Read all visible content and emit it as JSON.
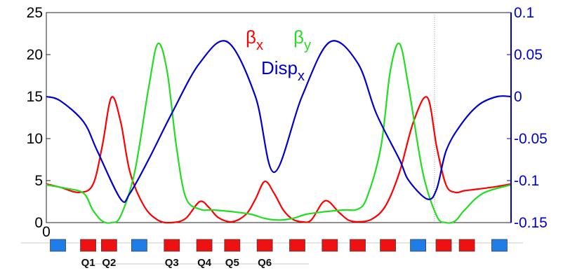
{
  "chart_data": {
    "type": "line",
    "title": "",
    "xlabel": "",
    "ylabel": "",
    "x_origin_label": "0",
    "xlim": [
      0,
      100
    ],
    "ylim_left": [
      0,
      25
    ],
    "ylim_right": [
      -0.15,
      0.1
    ],
    "yticks_left": [
      {
        "value": 0,
        "label": "0"
      },
      {
        "value": 5,
        "label": "5"
      },
      {
        "value": 10,
        "label": "10"
      },
      {
        "value": 15,
        "label": "15"
      },
      {
        "value": 20,
        "label": "20"
      },
      {
        "value": 25,
        "label": "25"
      }
    ],
    "yticks_right": [
      {
        "value": -0.15,
        "label": "-0.15"
      },
      {
        "value": -0.1,
        "label": "-0.1"
      },
      {
        "value": -0.05,
        "label": "-0.05"
      },
      {
        "value": 0,
        "label": "0"
      },
      {
        "value": 0.05,
        "label": "0.05"
      },
      {
        "value": 0.1,
        "label": "0.1"
      }
    ],
    "legend": [
      {
        "symbol": "β",
        "sub": "x",
        "color": "#ff0000"
      },
      {
        "symbol": "β",
        "sub": "y",
        "color": "#22dd22"
      },
      {
        "symbol": "Disp",
        "sub": "x",
        "color": "#0000cc"
      }
    ],
    "series": [
      {
        "color": "#ff0000",
        "axis": "left",
        "x": [
          0,
          3,
          7,
          10,
          12,
          14,
          16,
          18,
          21,
          24,
          27,
          30,
          33,
          35,
          37,
          40,
          43,
          45,
          47,
          49,
          51,
          53,
          55,
          57,
          60,
          63,
          65,
          67,
          70,
          73,
          76,
          79,
          82,
          84,
          86,
          88,
          90,
          93,
          97,
          100
        ],
        "y": [
          4.6,
          4.2,
          3.6,
          4.5,
          9.0,
          14.9,
          12.0,
          6.0,
          2.0,
          0.3,
          0.0,
          0.5,
          2.5,
          1.8,
          0.6,
          0.1,
          1.0,
          2.8,
          4.9,
          3.5,
          1.5,
          0.4,
          0.1,
          0.3,
          2.6,
          1.2,
          0.3,
          0.1,
          0.4,
          2.0,
          6.0,
          12.0,
          14.9,
          9.0,
          4.5,
          3.6,
          3.8,
          4.0,
          4.3,
          4.6
        ]
      },
      {
        "color": "#22dd22",
        "axis": "left",
        "x": [
          0,
          4,
          8,
          10,
          12,
          14,
          16,
          19,
          22,
          24,
          26,
          28,
          30,
          33,
          36,
          40,
          44,
          47,
          50,
          53,
          56,
          60,
          64,
          67,
          69,
          72,
          74,
          76,
          78,
          81,
          84,
          86,
          88,
          90,
          94,
          100
        ],
        "y": [
          4.5,
          4.1,
          3.5,
          1.5,
          0.2,
          0.0,
          0.8,
          6.0,
          16.0,
          21.3,
          18.0,
          9.0,
          3.0,
          1.6,
          1.5,
          1.3,
          1.0,
          0.5,
          0.3,
          0.5,
          1.0,
          1.3,
          1.5,
          1.6,
          3.0,
          9.0,
          18.0,
          21.3,
          16.0,
          6.0,
          0.8,
          0.0,
          0.2,
          1.5,
          3.5,
          4.5
        ]
      },
      {
        "color": "#0000cc",
        "axis": "right",
        "x": [
          0,
          3,
          8,
          11,
          16,
          18,
          22,
          27,
          33,
          39,
          45,
          49,
          55,
          61,
          67,
          71,
          76,
          78,
          82,
          84,
          86,
          89,
          93,
          97,
          100
        ],
        "y": [
          0.0,
          -0.005,
          -0.03,
          -0.065,
          -0.122,
          -0.115,
          -0.075,
          -0.02,
          0.04,
          0.065,
          0.0,
          -0.09,
          0.0,
          0.065,
          0.04,
          -0.02,
          -0.075,
          -0.1,
          -0.122,
          -0.11,
          -0.065,
          -0.035,
          -0.01,
          0.0,
          0.0
        ]
      }
    ],
    "lattice_elements": [
      {
        "x": 2.5,
        "color": "#1e7de6",
        "label": ""
      },
      {
        "x": 9.0,
        "color": "#ee1111",
        "label": "Q1"
      },
      {
        "x": 13.5,
        "color": "#ee1111",
        "label": "Q2"
      },
      {
        "x": 20.0,
        "color": "#1e7de6",
        "label": ""
      },
      {
        "x": 27.0,
        "color": "#ee1111",
        "label": "Q3"
      },
      {
        "x": 34.0,
        "color": "#ee1111",
        "label": "Q4"
      },
      {
        "x": 40.0,
        "color": "#ee1111",
        "label": "Q5"
      },
      {
        "x": 47.0,
        "color": "#ee1111",
        "label": "Q6"
      },
      {
        "x": 54.0,
        "color": "#ee1111",
        "label": ""
      },
      {
        "x": 61.0,
        "color": "#ee1111",
        "label": ""
      },
      {
        "x": 67.0,
        "color": "#ee1111",
        "label": ""
      },
      {
        "x": 73.5,
        "color": "#ee1111",
        "label": ""
      },
      {
        "x": 80.0,
        "color": "#1e7de6",
        "label": ""
      },
      {
        "x": 85.5,
        "color": "#ee1111",
        "label": ""
      },
      {
        "x": 90.5,
        "color": "#ee1111",
        "label": ""
      },
      {
        "x": 97.5,
        "color": "#1e7de6",
        "label": ""
      }
    ]
  }
}
